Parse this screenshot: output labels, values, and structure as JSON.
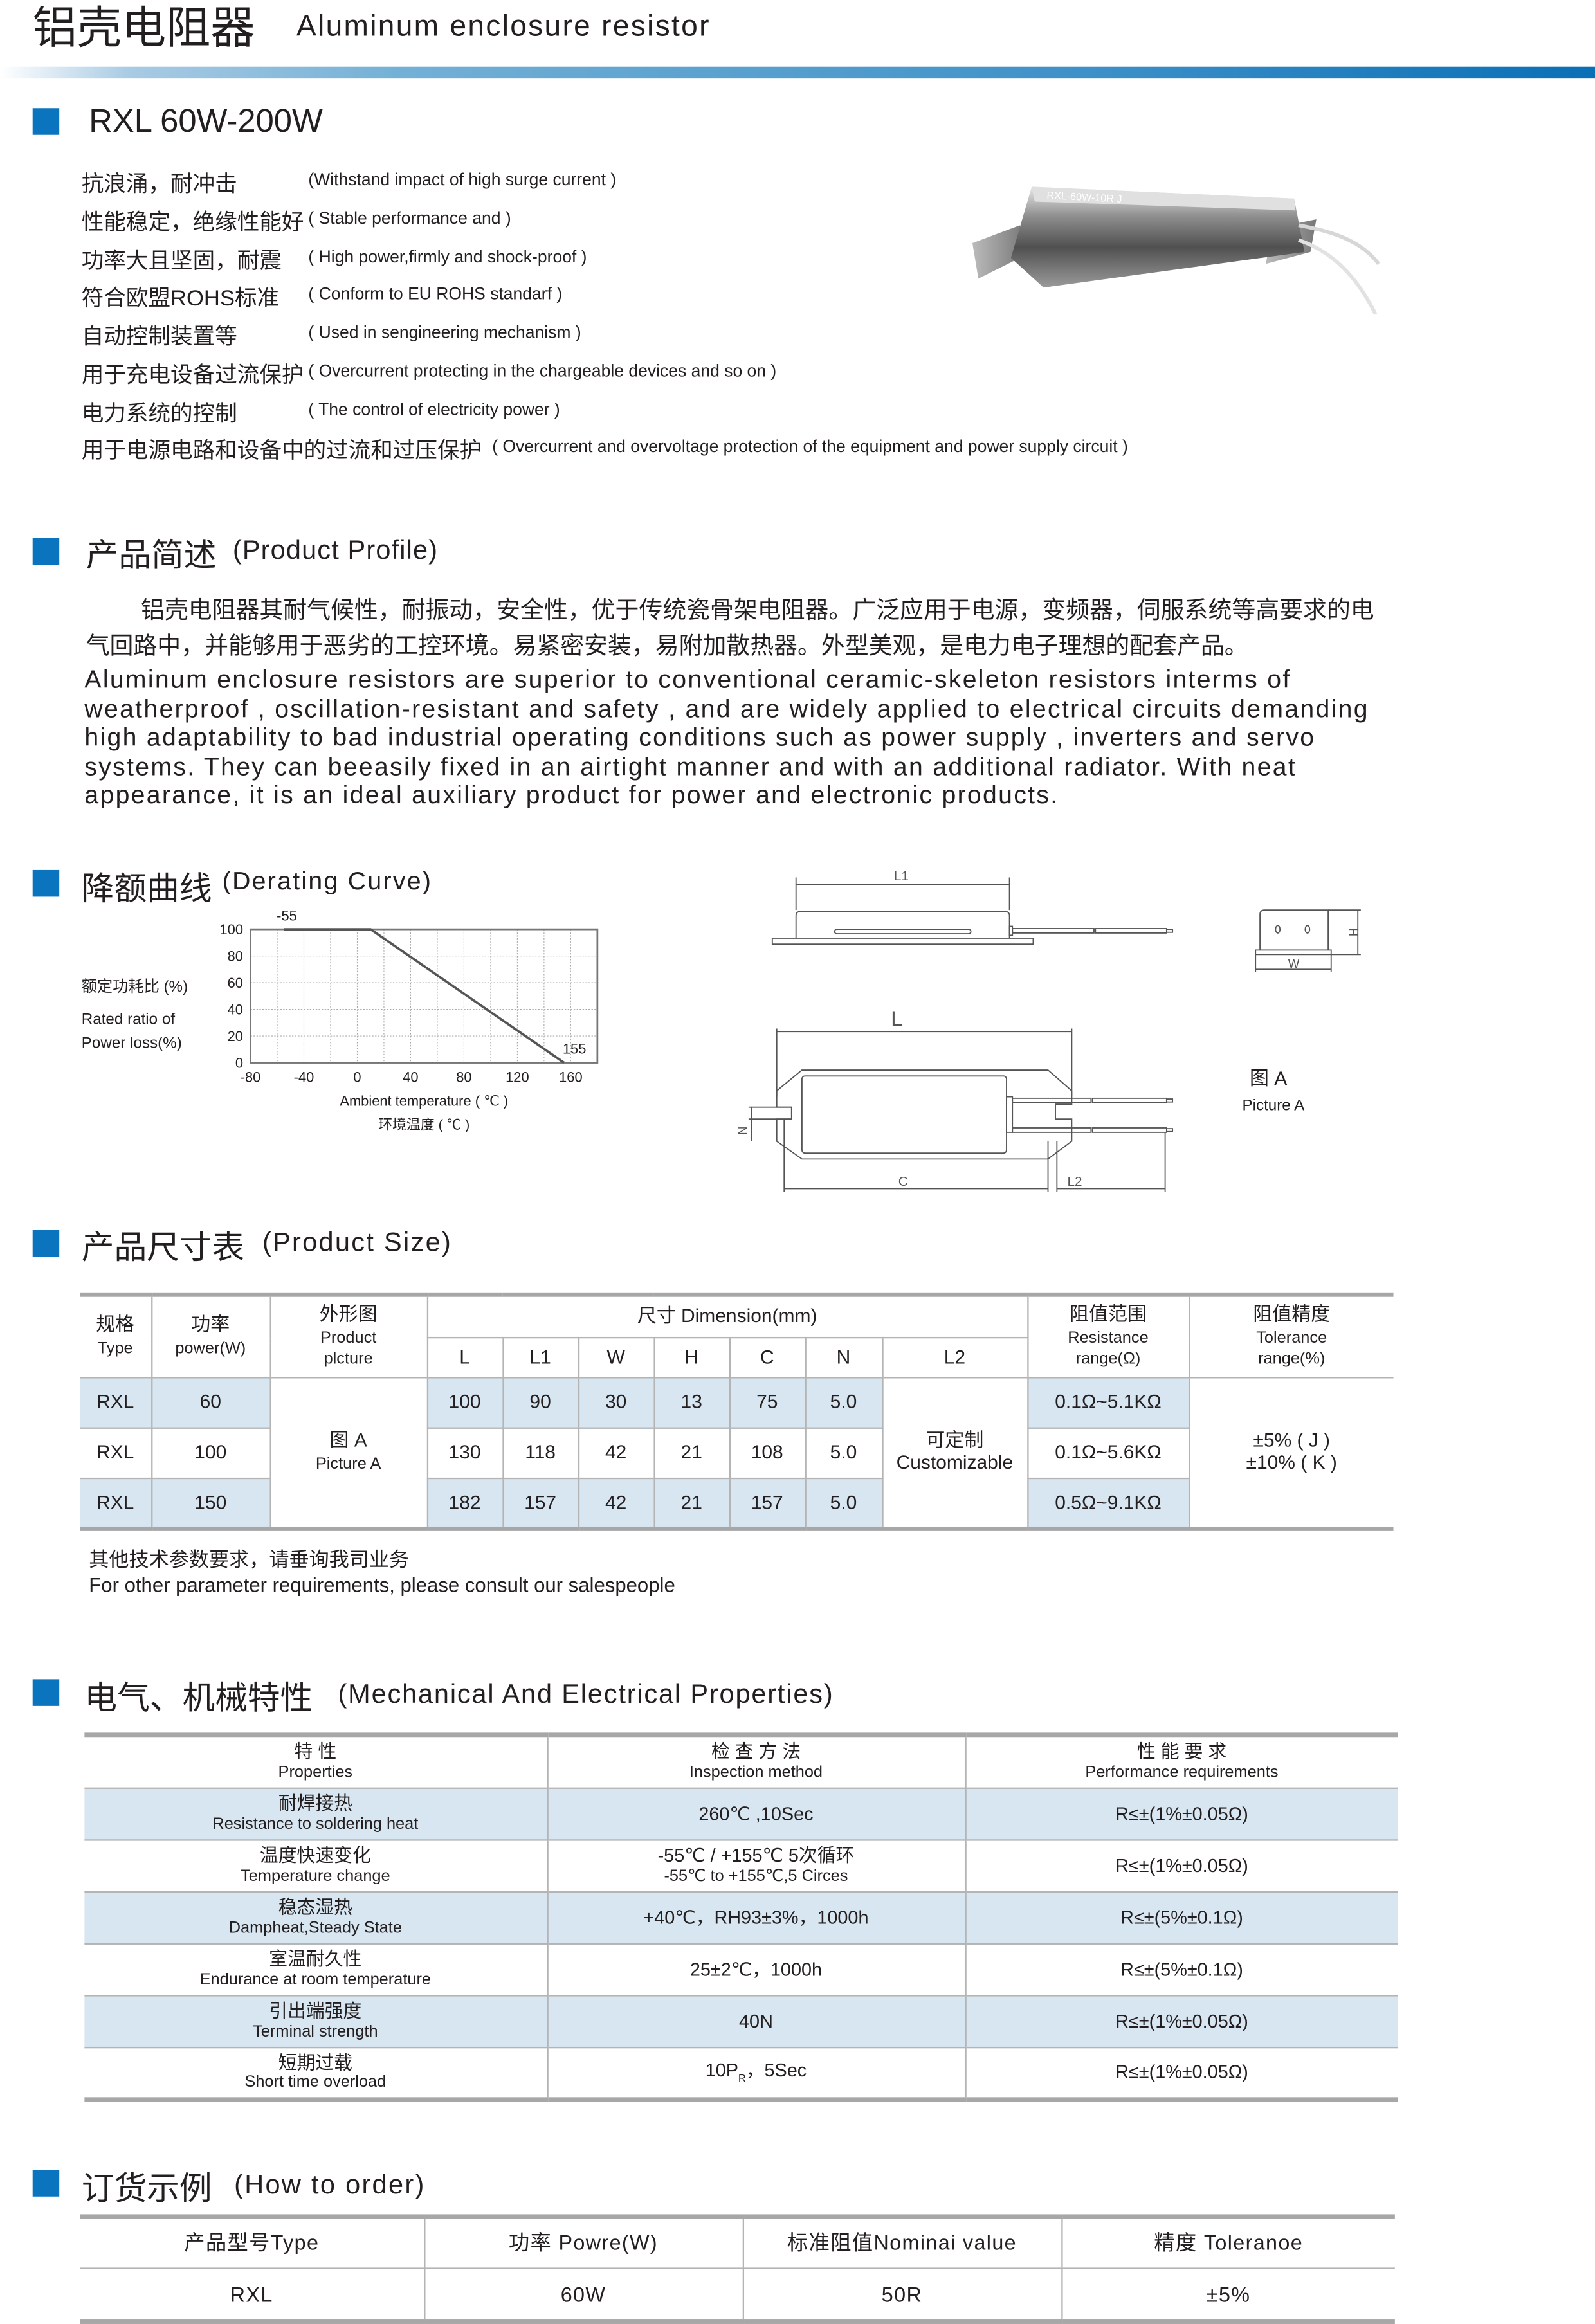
{
  "header": {
    "title_cn": "铝壳电阻器",
    "title_en": "Aluminum enclosure resistor",
    "accent_color": "#0a74bf"
  },
  "series": {
    "title": "RXL  60W-200W"
  },
  "features": [
    {
      "cn": "抗浪涌，耐冲击",
      "en": "(Withstand impact of high surge current )"
    },
    {
      "cn": "性能稳定，绝缘性能好",
      "en": "( Stable performance and )"
    },
    {
      "cn": "功率大且坚固，耐震",
      "en": "( High power,firmly and shock-proof )"
    },
    {
      "cn": "符合欧盟ROHS标准",
      "en": "( Conform to EU ROHS standarf )"
    },
    {
      "cn": "自动控制装置等",
      "en": "( Used in sengineering mechanism )"
    },
    {
      "cn": "用于充电设备过流保护",
      "en": "( Overcurrent protecting in the chargeable devices and so on )"
    },
    {
      "cn": "电力系统的控制",
      "en": "( The control of electricity power )"
    },
    {
      "cn": "用于电源电路和设备中的过流和过压保护",
      "en": "( Overcurrent and overvoltage protection of the equipment and power supply circuit )"
    }
  ],
  "product_photo": {
    "label": "RXL-60W-10R J"
  },
  "profile": {
    "title_cn": "产品简述",
    "title_en": "(Product Profile)",
    "cn_lines": [
      "铝壳电阻器其耐气候性，耐振动，安全性，优于传统瓷骨架电阻器。广泛应用于电源，变频器，伺服系统等高要求的电",
      "气回路中，并能够用于恶劣的工控环境。易紧密安装，易附加散热器。外型美观，是电力电子理想的配套产品。"
    ],
    "en_lines": [
      "Aluminum enclosure resistors are superior to conventional ceramic-skeleton resistors interms of",
      "weatherproof , oscillation-resistant and safety , and are widely applied to electrical circuits demanding",
      "high adaptability to bad industrial operating conditions such as power supply , inverters and servo",
      "systems. They can beeasily fixed in an airtight manner and with an additional radiator. With neat",
      "appearance, it is an ideal auxiliary product for power and electronic products."
    ]
  },
  "derating": {
    "title_cn": "降额曲线",
    "title_en": "(Derating Curve)"
  },
  "chart_data": {
    "type": "line",
    "ylabel_cn": "额定功耗比 (%)",
    "ylabel_en": [
      "Rated ratio of",
      "Power loss(%)"
    ],
    "xlabel_en": "Ambient temperature ( ℃ )",
    "xlabel_cn": "环境温度 ( ℃ )",
    "xlim": [
      -80,
      180
    ],
    "ylim": [
      0,
      100
    ],
    "x_ticks": [
      "-80",
      "-40",
      "0",
      "40",
      "80",
      "120",
      "160"
    ],
    "x_tick_values": [
      -80,
      -40,
      0,
      40,
      80,
      120,
      160
    ],
    "y_ticks": [
      "0",
      "20",
      "40",
      "60",
      "80",
      "100"
    ],
    "y_tick_values": [
      0,
      20,
      40,
      60,
      80,
      100
    ],
    "grid": true,
    "grid_x_step": 20,
    "grid_y_step": 20,
    "points": [
      {
        "x": -55,
        "y": 100
      },
      {
        "x": 10,
        "y": 100
      },
      {
        "x": 155,
        "y": 0
      }
    ],
    "annotations": [
      {
        "text": "-55",
        "x": -55,
        "y": 100
      },
      {
        "text": "155",
        "x": 155,
        "y": 0
      }
    ],
    "line_color": "#555555"
  },
  "drawing": {
    "L1": "L1",
    "H": "H",
    "W": "W",
    "L": "L",
    "N": "N",
    "C": "C",
    "L2": "L2",
    "caption_cn": "图  A",
    "caption_en": "Picture A"
  },
  "size_table": {
    "title_cn": "产品尺寸表",
    "title_en": "(Product Size)",
    "headers": {
      "type_cn": "规格",
      "type_en": "Type",
      "power_cn": "功率",
      "power_en": "power(W)",
      "pic_cn": "外形图",
      "pic_en1": "Product",
      "pic_en2": "plcture",
      "dimension": "尺寸 Dimension(mm)",
      "dims": [
        "L",
        "L1",
        "W",
        "H",
        "C",
        "N",
        "L2"
      ],
      "res_cn": "阻值范围",
      "res_en1": "Resistance",
      "res_en2": "range(Ω)",
      "tol_cn": "阻值精度",
      "tol_en1": "Tolerance",
      "tol_en2": "range(%)"
    },
    "rows": [
      {
        "type": "RXL",
        "power": "60",
        "dims": [
          "100",
          "90",
          "30",
          "13",
          "75",
          "5.0"
        ],
        "resistance": "0.1Ω~5.1KΩ"
      },
      {
        "type": "RXL",
        "power": "100",
        "dims": [
          "130",
          "118",
          "42",
          "21",
          "108",
          "5.0"
        ],
        "resistance": "0.1Ω~5.6KΩ"
      },
      {
        "type": "RXL",
        "power": "150",
        "dims": [
          "182",
          "157",
          "42",
          "21",
          "157",
          "5.0"
        ],
        "resistance": "0.5Ω~9.1KΩ"
      }
    ],
    "picture_cn": "图   A",
    "picture_en": "Picture A",
    "l2_cn": "可定制",
    "l2_en": "Customizable",
    "tolerance": [
      "±5% ( J )",
      "±10% ( K )"
    ],
    "note_cn": "其他技术参数要求，请垂询我司业务",
    "note_en": "For other parameter requirements, please consult our salespeople"
  },
  "properties": {
    "title_cn": "电气、机械特性",
    "title_en": "(Mechanical And Electrical Properties)",
    "headers": [
      {
        "cn": "特 性",
        "en": "Properties"
      },
      {
        "cn": "检 查 方 法",
        "en": "Inspection method"
      },
      {
        "cn": "性 能 要 求",
        "en": "Performance requirements"
      }
    ],
    "rows": [
      {
        "cn": "耐焊接热",
        "en": "Resistance to soldering heat",
        "method": "260℃ ,10Sec",
        "method2": "",
        "req": "R≤±(1%±0.05Ω)"
      },
      {
        "cn": "温度快速变化",
        "en": "Temperature change",
        "method": "-55℃ / +155℃ 5次循环",
        "method2": "-55℃ to +155℃,5 Circes",
        "req": "R≤±(1%±0.05Ω)"
      },
      {
        "cn": "稳态湿热",
        "en": "Dampheat,Steady State",
        "method": "+40℃，RH93±3%，1000h",
        "method2": "",
        "req": "R≤±(5%±0.1Ω)"
      },
      {
        "cn": "室温耐久性",
        "en": "Endurance at room temperature",
        "method": "25±2℃，1000h",
        "method2": "",
        "req": "R≤±(5%±0.1Ω)"
      },
      {
        "cn": "引出端强度",
        "en": "Terminal strength",
        "method": "40N",
        "method2": "",
        "req": "R≤±(1%±0.05Ω)"
      },
      {
        "cn": "短期过载",
        "en": "Short time overload",
        "method": "10P",
        "method_sub": "R",
        "method_tail": "，5Sec",
        "method2": "",
        "req": "R≤±(1%±0.05Ω)"
      }
    ]
  },
  "order": {
    "title_cn": "订货示例",
    "title_en": "(How to order)",
    "headers": [
      "产品型号Type",
      "功率  Powre(W)",
      "标准阻值Nominai value",
      "精度    Toleranoe"
    ],
    "row": [
      "RXL",
      "60W",
      "50R",
      "±5%"
    ]
  },
  "colors": {
    "accent": "#0a74bf",
    "row_shade": "#d8e6f1",
    "rule": "#a7a7a7"
  }
}
